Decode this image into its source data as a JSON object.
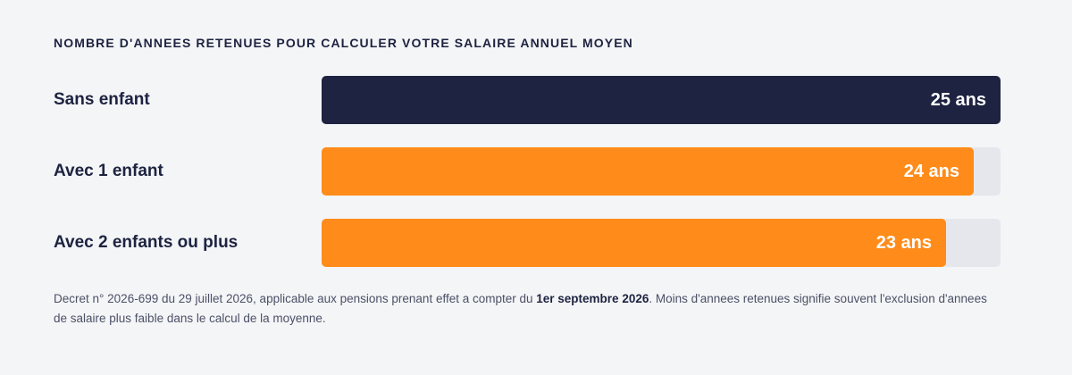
{
  "chart_data": {
    "type": "bar",
    "orientation": "horizontal",
    "title": "NOMBRE D'ANNEES RETENUES POUR CALCULER VOTRE SALAIRE ANNUEL MOYEN",
    "categories": [
      "Sans enfant",
      "Avec 1 enfant",
      "Avec 2 enfants ou plus"
    ],
    "values": [
      25,
      24,
      23
    ],
    "value_labels": [
      "25 ans",
      "24 ans",
      "23 ans"
    ],
    "unit": "ans",
    "xlim": [
      0,
      25
    ],
    "bar_colors": [
      "#1d2340",
      "#ff8c1a",
      "#ff8c1a"
    ],
    "track_color": "#e6e7ec",
    "grid": false,
    "legend": "none"
  },
  "footnote": {
    "before": "Decret n° 2026-699 du 29 juillet 2026, applicable aux pensions prenant effet a compter du ",
    "bold": "1er septembre 2026",
    "after": ". Moins d'annees retenues signifie souvent l'exclusion d'annees de salaire plus faible dans le calcul de la moyenne."
  }
}
